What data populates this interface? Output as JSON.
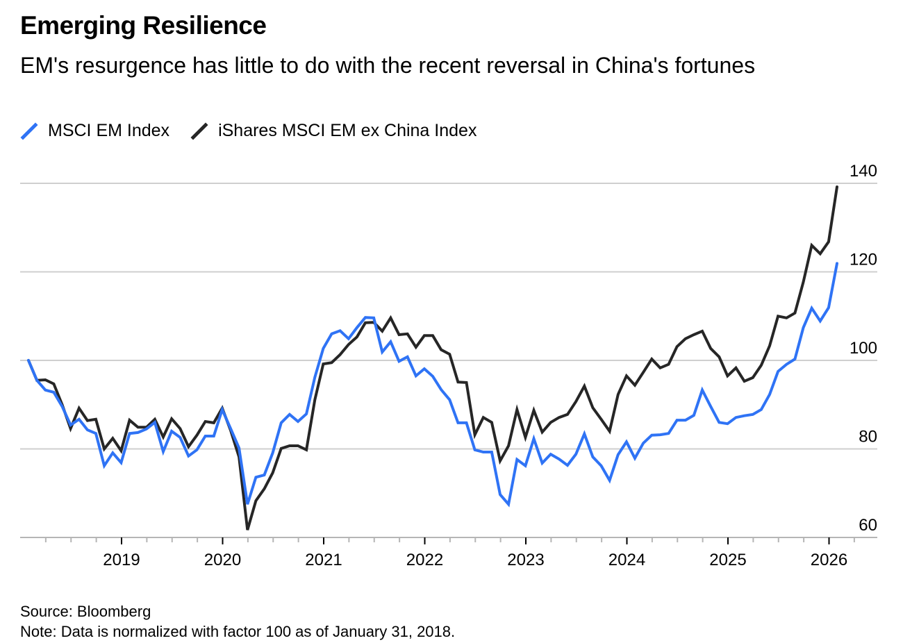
{
  "chart_data": {
    "type": "line",
    "title": "Emerging Resilience",
    "subtitle": "EM's resurgence has little to do with the recent reversal in China's fortunes",
    "xlabel": "",
    "ylabel": "",
    "x_start": "2018-01",
    "x_frequency": "monthly",
    "x_ticks": [
      "2019",
      "2020",
      "2021",
      "2022",
      "2023",
      "2024",
      "2025",
      "2026"
    ],
    "y_ticks": [
      "60",
      "80",
      "100",
      "120",
      "140"
    ],
    "ylim": [
      60,
      140
    ],
    "xlim": [
      2018.0,
      2026.5
    ],
    "grid": "horizontal",
    "legend_position": "top-left",
    "series": [
      {
        "name": "MSCI EM Index",
        "color": "#2f73f5",
        "values": [
          100,
          95.5,
          93.3,
          92.8,
          89.6,
          85.4,
          86.7,
          84.3,
          83.5,
          76.2,
          79.1,
          76.9,
          83.5,
          83.7,
          84.5,
          86.0,
          79.4,
          84.0,
          82.6,
          78.4,
          79.8,
          82.9,
          82.9,
          88.9,
          84.6,
          80.2,
          67.5,
          73.6,
          74.1,
          79.1,
          85.9,
          87.8,
          86.2,
          87.9,
          96.2,
          102.7,
          106.0,
          106.7,
          104.9,
          107.4,
          109.7,
          109.6,
          101.9,
          104.2,
          99.8,
          100.8,
          96.5,
          98.1,
          96.4,
          93.4,
          91.1,
          85.9,
          85.9,
          79.8,
          79.3,
          79.3,
          69.7,
          67.5,
          77.6,
          76.2,
          82.3,
          76.8,
          78.8,
          77.7,
          76.3,
          78.8,
          83.4,
          78.2,
          76.2,
          72.9,
          78.7,
          81.6,
          77.9,
          81.3,
          83.1,
          83.2,
          83.5,
          86.5,
          86.5,
          87.6,
          93.3,
          89.6,
          86.0,
          85.7,
          87.1,
          87.5,
          87.8,
          88.9,
          92.3,
          97.5,
          99.1,
          100.3,
          107.4,
          111.8,
          108.9,
          111.9,
          121.9
        ]
      },
      {
        "name": "iShares MSCI EM ex China Index",
        "color": "#262626",
        "values": [
          100,
          95.5,
          95.6,
          94.7,
          90.0,
          84.6,
          89.2,
          86.4,
          86.7,
          80.0,
          82.4,
          79.6,
          86.5,
          84.9,
          84.9,
          86.7,
          82.7,
          86.8,
          84.6,
          80.5,
          83.1,
          86.2,
          85.9,
          89.2,
          84.2,
          78.2,
          61.7,
          68.3,
          71.0,
          74.6,
          80.1,
          80.7,
          80.7,
          79.8,
          91.1,
          99.2,
          99.5,
          101.3,
          103.6,
          105.3,
          108.5,
          108.6,
          106.6,
          109.6,
          105.8,
          106.0,
          103.0,
          105.6,
          105.6,
          102.4,
          101.4,
          95.1,
          95.0,
          83.2,
          87.1,
          86.0,
          77.3,
          80.7,
          88.9,
          82.6,
          88.7,
          83.8,
          86.0,
          87.1,
          87.8,
          90.7,
          94.2,
          89.3,
          86.7,
          84.0,
          92.3,
          96.5,
          94.4,
          97.3,
          100.3,
          98.3,
          99.1,
          103.1,
          104.9,
          105.8,
          106.6,
          102.7,
          100.8,
          96.5,
          98.3,
          95.3,
          96.1,
          98.9,
          103.3,
          110.0,
          109.6,
          110.7,
          117.7,
          126.0,
          124.1,
          126.8,
          139.2
        ]
      }
    ],
    "footer": {
      "source": "Source: Bloomberg",
      "note": "Note: Data is normalized with factor 100 as of January 31, 2018."
    }
  }
}
